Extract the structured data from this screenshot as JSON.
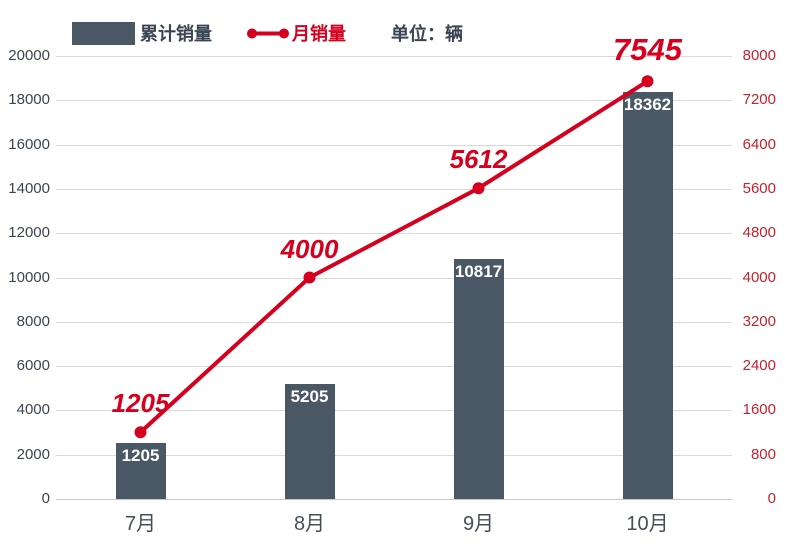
{
  "legend": {
    "bar_series_label": "累计销量",
    "line_series_label": "月销量",
    "unit_label": "单位：辆"
  },
  "colors": {
    "bar": "#4a5866",
    "line": "#d6001e",
    "left_axis_text": "#3a4553",
    "right_axis_text": "#c3232d",
    "category_text": "#454f5a",
    "grid": "#d9d9d9",
    "axis_line": "#c5c9cd",
    "bar_value_text": "#ffffff",
    "background": "#ffffff"
  },
  "chart_data": {
    "type": "bar",
    "subtype": "bar-line-combo",
    "title": "",
    "categories": [
      "7月",
      "8月",
      "9月",
      "10月"
    ],
    "series": [
      {
        "name": "累计销量",
        "type": "bar",
        "axis": "left",
        "values": [
          1205,
          5205,
          10817,
          18362
        ]
      },
      {
        "name": "月销量",
        "type": "line",
        "axis": "right",
        "values": [
          1205,
          4000,
          5612,
          7545
        ]
      }
    ],
    "left_axis": {
      "min": 0,
      "max": 20000,
      "step": 2000,
      "ticks": [
        "0",
        "2000",
        "4000",
        "6000",
        "8000",
        "10000",
        "12000",
        "14000",
        "16000",
        "18000",
        "20000"
      ]
    },
    "right_axis": {
      "min": 0,
      "max": 8000,
      "step": 800,
      "ticks": [
        "0",
        "800",
        "1600",
        "2400",
        "3200",
        "4000",
        "4800",
        "5600",
        "6400",
        "7200",
        "8000"
      ]
    },
    "unit": "辆",
    "grid": true,
    "legend_position": "top"
  }
}
